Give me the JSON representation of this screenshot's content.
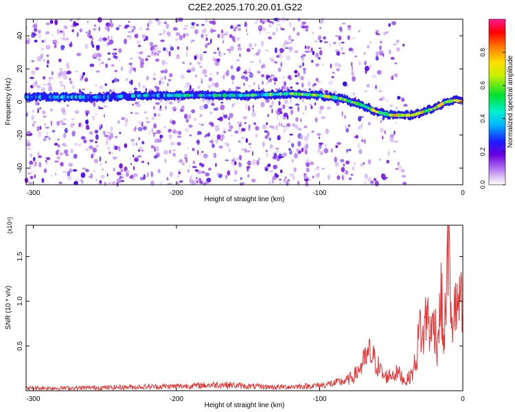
{
  "title": "C2E2.2025.170.20.01.G22",
  "colors": {
    "snr_line": "#e53232",
    "ridge_core": "#ff2020",
    "scatter_default": "#8a2be2"
  },
  "chart_data": [
    {
      "type": "heatmap",
      "name": "spectrogram",
      "xlabel": "Height of straight line (km)",
      "ylabel": "Frequency (Hz)",
      "xlim": [
        -305,
        0
      ],
      "ylim": [
        -50,
        50
      ],
      "xticks": [
        -300,
        -200,
        -100,
        0
      ],
      "xtick_labels": [
        "-300",
        "-200",
        "-100",
        "0"
      ],
      "yticks": [
        -40,
        -20,
        0,
        20,
        40
      ],
      "ytick_labels": [
        "-40",
        "-20",
        "0",
        "20",
        "40"
      ],
      "colorbar": {
        "label": "Normalized spectral amplitude",
        "range": [
          0,
          1
        ],
        "ticks": [
          0.0,
          0.2,
          0.4,
          0.6,
          0.8
        ],
        "tick_labels": [
          "0.0",
          "0.2",
          "0.4",
          "0.6",
          "0.8"
        ],
        "colormap": "rainbow (white→violet→blue→cyan→green→yellow→red→magenta)"
      },
      "ridge": {
        "description": "dominant Doppler frequency track",
        "x": [
          -305,
          -280,
          -250,
          -220,
          -200,
          -175,
          -150,
          -120,
          -100,
          -85,
          -70,
          -60,
          -50,
          -42,
          -35,
          -28,
          -20,
          -12,
          -5,
          0
        ],
        "y": [
          3,
          3,
          3,
          4,
          4,
          4,
          4,
          5,
          4,
          2,
          -2,
          -6,
          -8,
          -8,
          -8,
          -6,
          -4,
          0,
          1,
          0
        ],
        "amplitude": [
          0.3,
          0.3,
          0.35,
          0.35,
          0.4,
          0.4,
          0.45,
          0.5,
          0.55,
          0.55,
          0.5,
          0.6,
          0.65,
          0.75,
          0.7,
          0.65,
          0.6,
          0.65,
          0.75,
          0.7
        ]
      },
      "noise": {
        "description": "scattered low-amplitude points",
        "amplitude_range": [
          0.0,
          0.2
        ],
        "dense_extent_x": [
          -305,
          -100
        ]
      },
      "grid": false
    },
    {
      "type": "line",
      "name": "snr",
      "xlabel": "Height of straight line (km)",
      "ylabel": "SNR (10 * v/v)",
      "y_multiplier": "(x10⁴)",
      "xlim": [
        -305,
        0
      ],
      "ylim": [
        0,
        1.85
      ],
      "xticks": [
        -300,
        -200,
        -100,
        0
      ],
      "xtick_labels": [
        "-300",
        "-200",
        "-100",
        "0"
      ],
      "yticks": [
        0.5,
        1.0,
        1.5
      ],
      "ytick_labels": [
        "0.5",
        "1.0",
        "1.5"
      ],
      "series": [
        {
          "x": [
            -305,
            -280,
            -250,
            -220,
            -200,
            -180,
            -170,
            -150,
            -130,
            -110,
            -100,
            -90,
            -80,
            -75,
            -70,
            -65,
            -60,
            -55,
            -50,
            -45,
            -40,
            -35,
            -32,
            -30,
            -28,
            -25,
            -22,
            -20,
            -18,
            -15,
            -13,
            -11,
            -10,
            -8,
            -6,
            -4,
            -2,
            0
          ],
          "y": [
            0.03,
            0.03,
            0.035,
            0.045,
            0.05,
            0.06,
            0.07,
            0.05,
            0.04,
            0.05,
            0.06,
            0.08,
            0.12,
            0.18,
            0.3,
            0.42,
            0.3,
            0.15,
            0.18,
            0.2,
            0.1,
            0.2,
            0.4,
            0.75,
            0.55,
            0.9,
            0.6,
            0.85,
            0.5,
            1.05,
            0.45,
            1.5,
            1.85,
            0.6,
            1.0,
            0.85,
            1.05,
            0.75
          ]
        }
      ],
      "grid": false
    }
  ]
}
